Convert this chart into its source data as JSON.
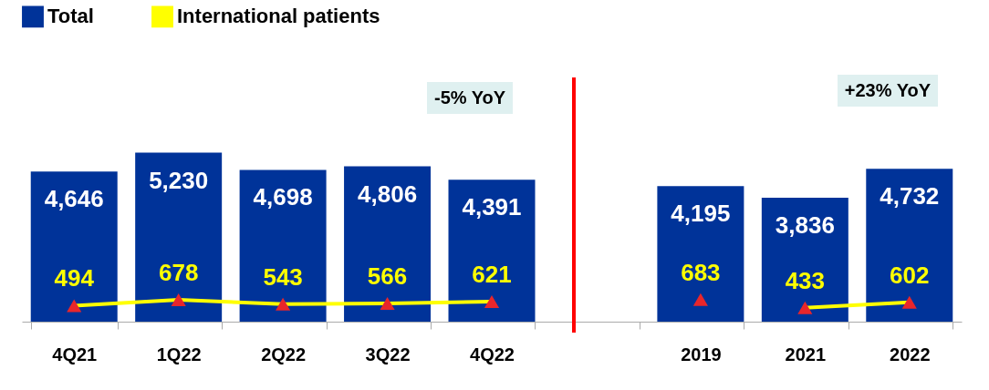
{
  "chart_data": {
    "type": "bar",
    "categories": [
      "4Q21",
      "1Q22",
      "2Q22",
      "3Q22",
      "4Q22",
      null,
      "2019",
      "2021",
      "2022"
    ],
    "series": [
      {
        "name": "Total",
        "color": "#003399",
        "values": [
          4646,
          5230,
          4698,
          4806,
          4391,
          null,
          4195,
          3836,
          4732
        ],
        "value_labels": [
          "4,646",
          "5,230",
          "4,698",
          "4,806",
          "4,391",
          null,
          "4,195",
          "3,836",
          "4,732"
        ]
      },
      {
        "name": "International patients",
        "type": "line",
        "color": "#ffff00",
        "colors": [
          "#e8262b",
          "#e8262b",
          "#e8262b",
          "#e8262b",
          "#e8262b",
          null,
          "#e8262b",
          null,
          null
        ],
        "marker": "triangle",
        "values": [
          494,
          678,
          543,
          566,
          621,
          null,
          683,
          null,
          null
        ]
      },
      {
        "type": "line",
        "color": "#ffff00",
        "colors": [
          null,
          null,
          null,
          null,
          null,
          null,
          null,
          "#e8262b",
          "#e8262b"
        ],
        "marker": "triangle",
        "values": [
          null,
          null,
          null,
          null,
          null,
          null,
          null,
          433,
          602
        ]
      }
    ],
    "tick_labels": "x",
    "data_labels": true,
    "legend": "top",
    "annotations": [
      "-5% YoY",
      "+23% YoY"
    ]
  }
}
